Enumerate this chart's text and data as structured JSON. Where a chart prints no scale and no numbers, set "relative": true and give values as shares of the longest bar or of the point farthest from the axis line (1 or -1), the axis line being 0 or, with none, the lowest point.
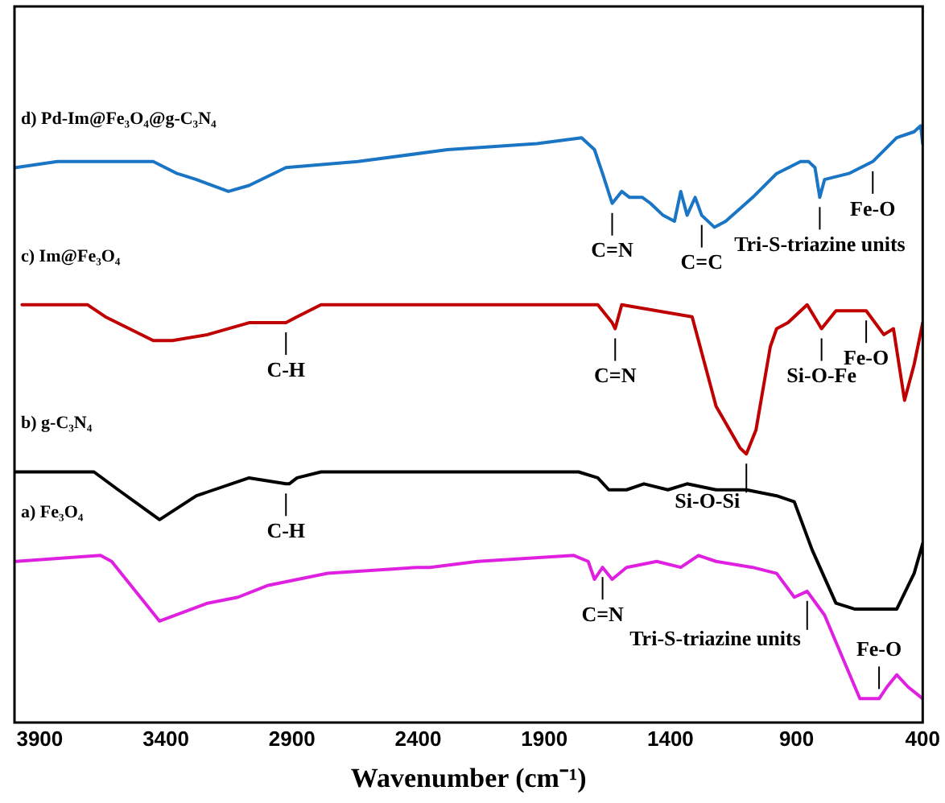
{
  "chart_data": {
    "type": "line",
    "relative": true,
    "xlabel": "Wavenumber (cm⁻¹)",
    "xlim": [
      4000,
      400
    ],
    "xticks": [
      3900,
      3400,
      2900,
      2400,
      1900,
      1400,
      900,
      400
    ],
    "grid": false,
    "legend": false,
    "marker": "none",
    "line_style": "solid",
    "series": [
      {
        "name": "d) Pd-Im@Fe₃O₄@g-C₃N₄",
        "color": "#1a75c4",
        "x": [
          3995,
          3830,
          3450,
          3355,
          3279,
          3152,
          3070,
          2924,
          2639,
          2284,
          1929,
          1752,
          1701,
          1669,
          1631,
          1593,
          1562,
          1511,
          1479,
          1429,
          1384,
          1359,
          1334,
          1302,
          1276,
          1226,
          1181,
          1074,
          979,
          884,
          852,
          827,
          808,
          789,
          693,
          598,
          503,
          434,
          408,
          400
        ],
        "values": [
          0.93,
          0.94,
          0.94,
          0.92,
          0.91,
          0.89,
          0.9,
          0.93,
          0.94,
          0.96,
          0.97,
          0.98,
          0.96,
          0.92,
          0.87,
          0.89,
          0.88,
          0.88,
          0.87,
          0.85,
          0.84,
          0.89,
          0.85,
          0.88,
          0.85,
          0.83,
          0.84,
          0.88,
          0.92,
          0.94,
          0.94,
          0.93,
          0.88,
          0.91,
          0.92,
          0.94,
          0.98,
          0.99,
          1.0,
          0.97
        ]
      },
      {
        "name": "c) Im@Fe₃O₄",
        "color": "#c00000",
        "x": [
          3970,
          3710,
          3640,
          3450,
          3374,
          3235,
          3070,
          2924,
          2880,
          2785,
          2404,
          2354,
          2164,
          1809,
          1688,
          1631,
          1619,
          1593,
          1454,
          1314,
          1276,
          1219,
          1124,
          1099,
          1061,
          1004,
          979,
          934,
          858,
          801,
          744,
          624,
          554,
          516,
          472,
          434,
          400
        ],
        "values": [
          0.7,
          0.7,
          0.68,
          0.64,
          0.64,
          0.65,
          0.67,
          0.67,
          0.68,
          0.7,
          0.7,
          0.7,
          0.7,
          0.7,
          0.7,
          0.67,
          0.66,
          0.7,
          0.69,
          0.68,
          0.62,
          0.53,
          0.46,
          0.45,
          0.49,
          0.63,
          0.66,
          0.67,
          0.7,
          0.66,
          0.69,
          0.69,
          0.65,
          0.66,
          0.54,
          0.6,
          0.67
        ]
      },
      {
        "name": "b) g-C₃N₄",
        "color": "#000000",
        "x": [
          3995,
          3685,
          3589,
          3425,
          3279,
          3070,
          2924,
          2911,
          2880,
          2785,
          1764,
          1688,
          1644,
          1574,
          1505,
          1410,
          1334,
          1219,
          1099,
          979,
          909,
          839,
          744,
          668,
          503,
          434,
          400
        ],
        "values": [
          0.42,
          0.42,
          0.39,
          0.34,
          0.38,
          0.41,
          0.4,
          0.4,
          0.41,
          0.42,
          0.42,
          0.41,
          0.39,
          0.39,
          0.4,
          0.39,
          0.4,
          0.39,
          0.39,
          0.38,
          0.37,
          0.29,
          0.2,
          0.19,
          0.19,
          0.25,
          0.3
        ]
      },
      {
        "name": "a) Fe₃O₄",
        "color": "#e020e0",
        "x": [
          3995,
          3659,
          3615,
          3425,
          3235,
          3114,
          2994,
          2759,
          2404,
          2354,
          2164,
          1783,
          1726,
          1701,
          1669,
          1631,
          1574,
          1454,
          1359,
          1289,
          1219,
          1074,
          979,
          909,
          858,
          789,
          719,
          649,
          573,
          541,
          503,
          459,
          400
        ],
        "values": [
          0.27,
          0.28,
          0.27,
          0.17,
          0.2,
          0.21,
          0.23,
          0.25,
          0.26,
          0.26,
          0.27,
          0.28,
          0.27,
          0.24,
          0.26,
          0.24,
          0.26,
          0.27,
          0.26,
          0.28,
          0.27,
          0.26,
          0.25,
          0.21,
          0.22,
          0.18,
          0.11,
          0.04,
          0.04,
          0.06,
          0.08,
          0.06,
          0.04
        ]
      }
    ],
    "annotations": [
      {
        "text": "C=N",
        "x": 1631,
        "y": 0.87
      },
      {
        "text": "C=C",
        "x": 1276,
        "y": 0.85
      },
      {
        "text": "Tri-S-triazine units",
        "x": 808,
        "y": 0.88
      },
      {
        "text": "Fe-O",
        "x": 598,
        "y": 0.94
      },
      {
        "text": "C-H",
        "x": 2924,
        "y": 0.67
      },
      {
        "text": "C=N",
        "x": 1619,
        "y": 0.66
      },
      {
        "text": "Si-O-Si",
        "x": 1099,
        "y": 0.45
      },
      {
        "text": "Si-O-Fe",
        "x": 801,
        "y": 0.66
      },
      {
        "text": "Fe-O",
        "x": 624,
        "y": 0.69
      },
      {
        "text": "C-H",
        "x": 2924,
        "y": 0.4
      },
      {
        "text": "C=N",
        "x": 1669,
        "y": 0.26
      },
      {
        "text": "Tri-S-triazine units",
        "x": 858,
        "y": 0.22
      },
      {
        "text": "Fe-O",
        "x": 573,
        "y": 0.04
      }
    ]
  }
}
